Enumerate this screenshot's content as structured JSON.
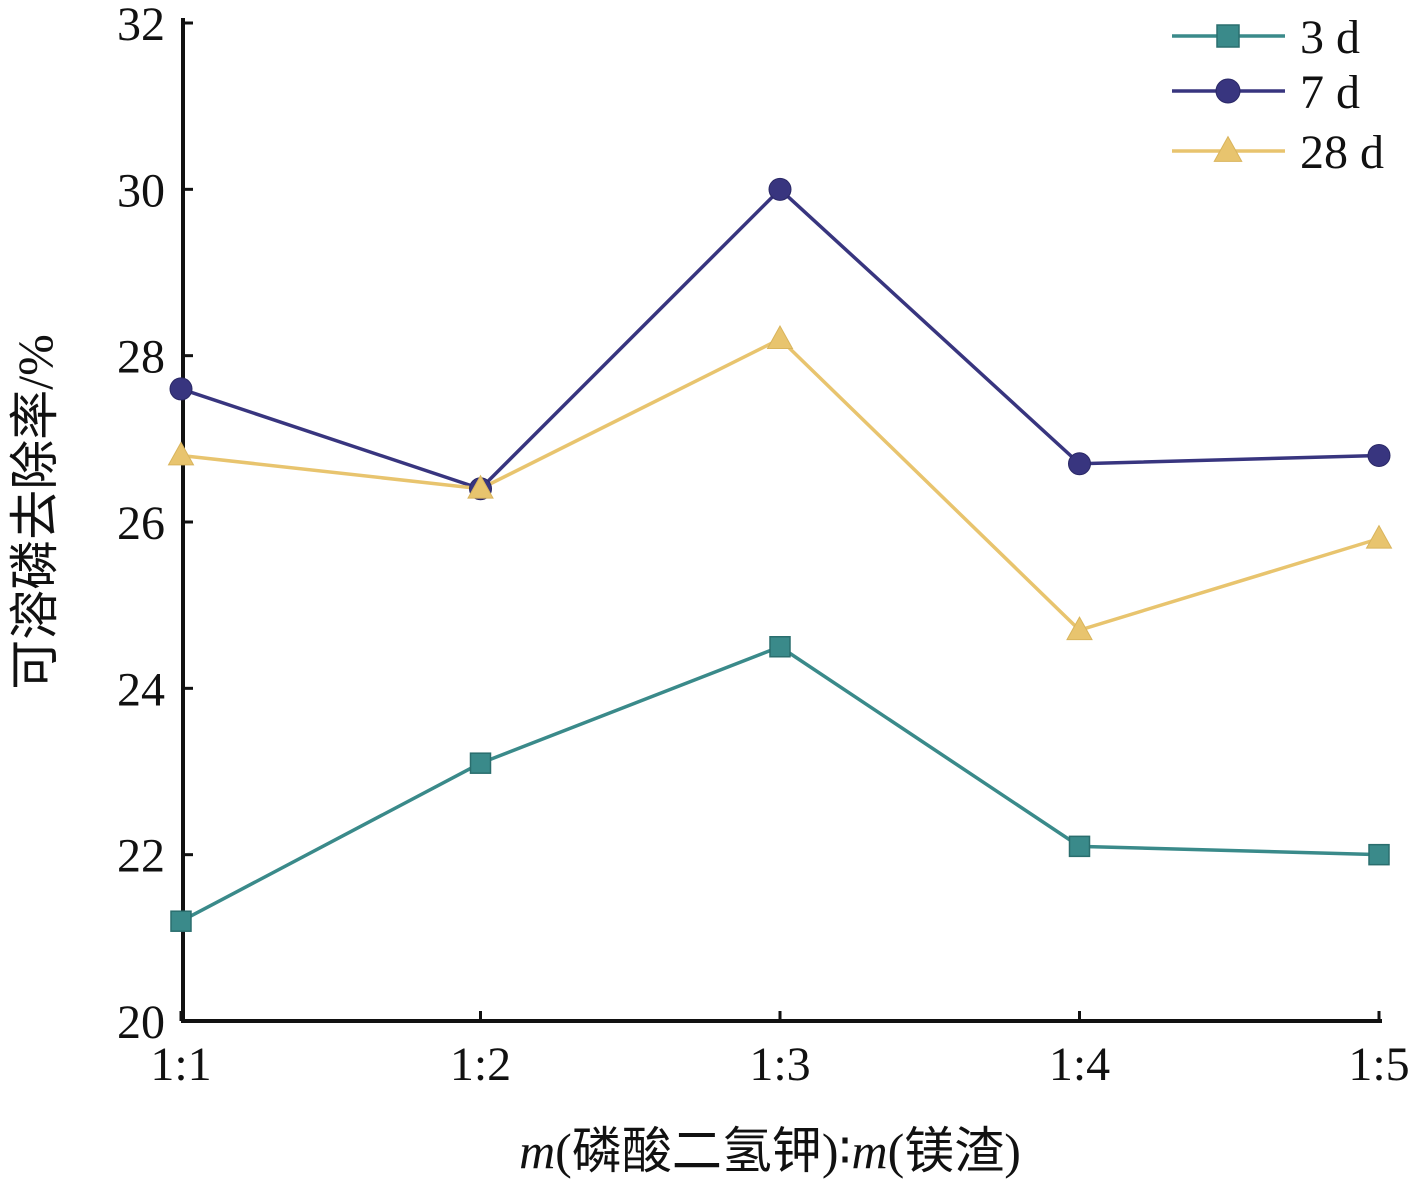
{
  "chart_data": {
    "type": "line",
    "title": "",
    "xlabel": "m(磷酸二氢钾)∶m(镁渣)",
    "xlabel_parts": {
      "var1": "m",
      "mid": "(磷酸二氢钾)∶",
      "var2": "m",
      "end": "(镁渣)"
    },
    "ylabel": "可溶磷去除率/%",
    "categories": [
      "1:1",
      "1:2",
      "1:3",
      "1:4",
      "1:5"
    ],
    "ylim": [
      20,
      32
    ],
    "yticks": [
      20,
      22,
      24,
      26,
      28,
      30,
      32
    ],
    "ytick_labels": [
      "20",
      "22",
      "24",
      "26",
      "28",
      "30",
      "32"
    ],
    "grid": false,
    "legend_position": "top-right",
    "series": [
      {
        "name": "3 d",
        "marker": "square",
        "color": "#3a8a8a",
        "values": [
          21.2,
          23.1,
          24.5,
          22.1,
          22.0
        ]
      },
      {
        "name": "7 d",
        "marker": "circle",
        "color": "#38357f",
        "values": [
          27.6,
          26.4,
          30.0,
          26.7,
          26.8
        ]
      },
      {
        "name": "28 d",
        "marker": "triangle",
        "color": "#e8c46e",
        "values": [
          26.8,
          26.4,
          28.2,
          24.7,
          25.8
        ]
      }
    ]
  }
}
